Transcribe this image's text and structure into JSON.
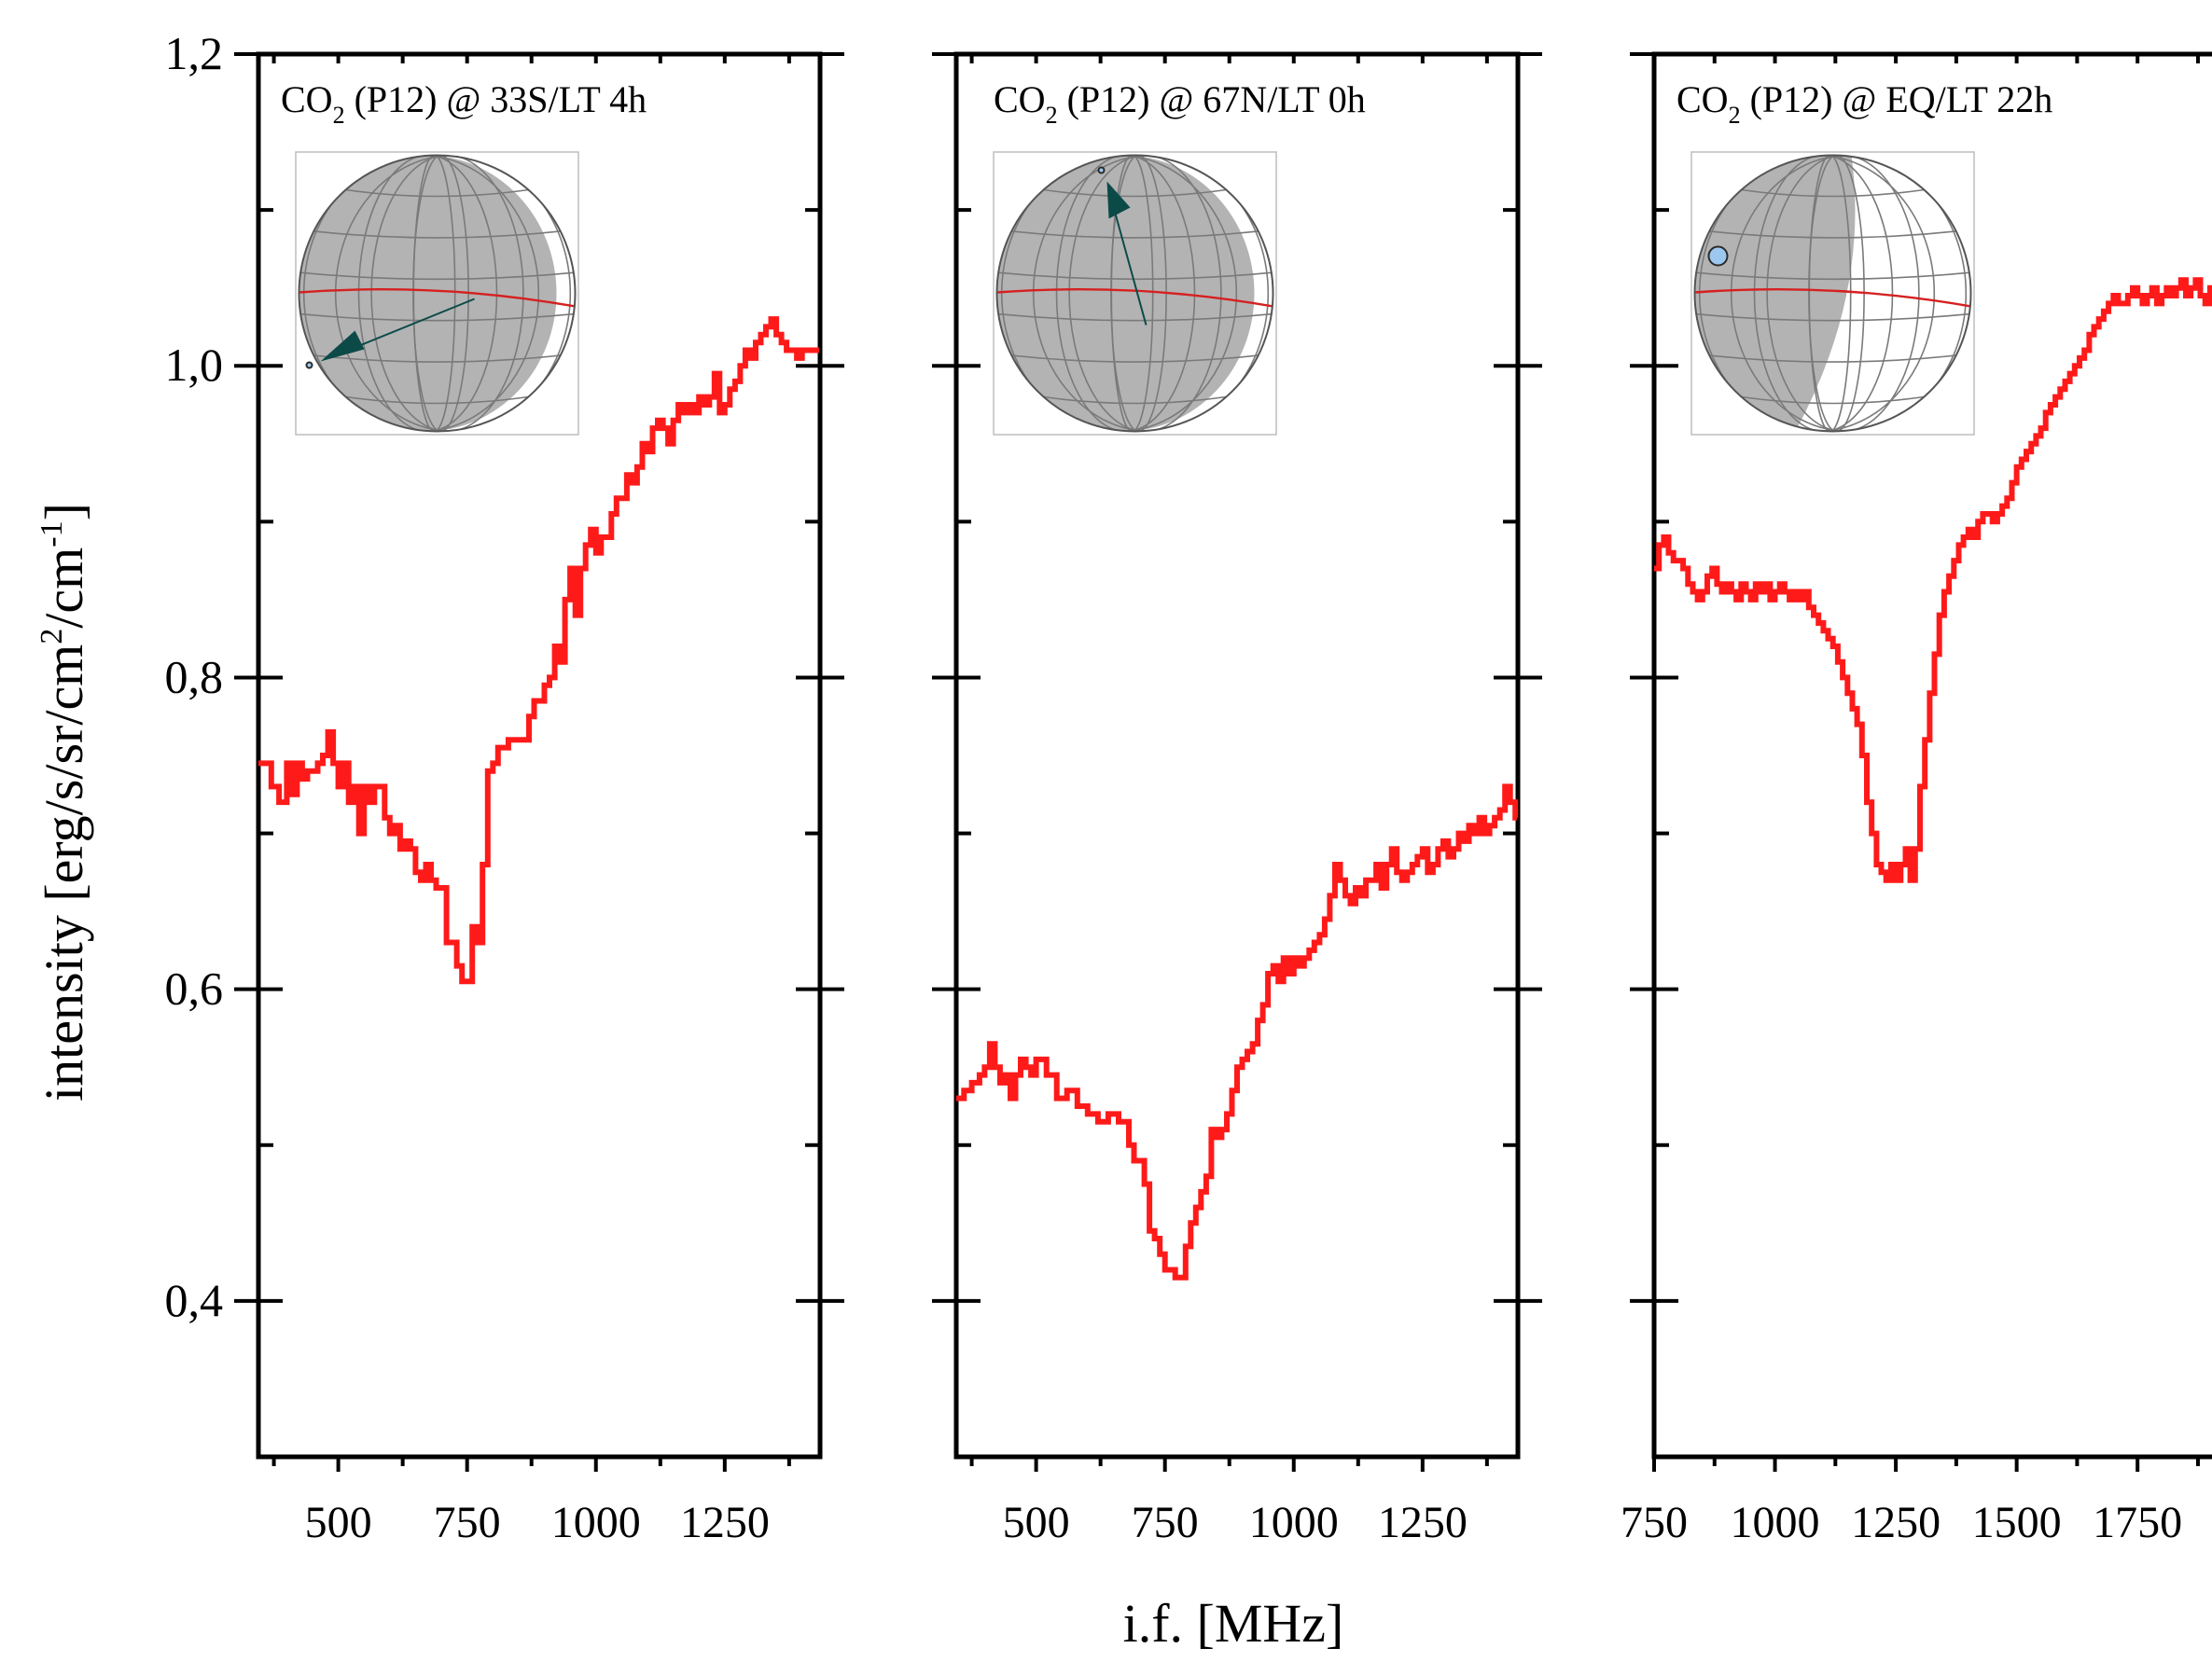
{
  "figure": {
    "y_axis_title": "intensity [erg/s/sr/cm",
    "y_axis_title_sup": "2",
    "y_axis_title_mid": "/cm",
    "y_axis_title_sup2": "-1",
    "y_axis_title_end": "]",
    "x_axis_title": "i.f. [MHz]"
  },
  "chart_data": [
    {
      "type": "line",
      "title_pre": "CO",
      "title_sub": "2",
      "title_post": " (P12) @ 33S/LT 4h",
      "xlim": [
        345,
        1435
      ],
      "ylim": [
        0.3,
        1.2
      ],
      "xticks": [
        500,
        750,
        1000,
        1250
      ],
      "yticks": [
        0.4,
        0.6,
        0.8,
        1.0,
        1.2
      ],
      "yticklabels": [
        "0,4",
        "0,6",
        "0,8",
        "1,0",
        "1,2"
      ],
      "color": "#ff1a1a",
      "x": [
        345,
        370,
        385,
        400,
        410,
        420,
        430,
        440,
        460,
        470,
        480,
        490,
        500,
        510,
        520,
        530,
        540,
        550,
        560,
        570,
        590,
        600,
        610,
        620,
        630,
        640,
        650,
        660,
        670,
        680,
        690,
        700,
        710,
        720,
        730,
        740,
        750,
        760,
        770,
        780,
        790,
        800,
        810,
        830,
        850,
        870,
        880,
        890,
        900,
        910,
        920,
        930,
        940,
        950,
        960,
        970,
        980,
        990,
        1000,
        1010,
        1020,
        1030,
        1040,
        1050,
        1060,
        1070,
        1080,
        1090,
        1100,
        1110,
        1120,
        1130,
        1140,
        1150,
        1160,
        1170,
        1180,
        1190,
        1200,
        1210,
        1220,
        1230,
        1240,
        1250,
        1260,
        1270,
        1280,
        1290,
        1300,
        1310,
        1320,
        1330,
        1340,
        1350,
        1360,
        1370,
        1380,
        1390,
        1400,
        1410,
        1420,
        1430
      ],
      "y": [
        0.745,
        0.73,
        0.72,
        0.745,
        0.725,
        0.745,
        0.735,
        0.74,
        0.745,
        0.75,
        0.765,
        0.745,
        0.73,
        0.745,
        0.72,
        0.73,
        0.7,
        0.73,
        0.72,
        0.73,
        0.71,
        0.7,
        0.705,
        0.69,
        0.695,
        0.69,
        0.675,
        0.67,
        0.68,
        0.67,
        0.665,
        0.665,
        0.63,
        0.63,
        0.615,
        0.605,
        0.605,
        0.64,
        0.63,
        0.68,
        0.74,
        0.745,
        0.755,
        0.76,
        0.76,
        0.775,
        0.785,
        0.785,
        0.795,
        0.8,
        0.82,
        0.81,
        0.85,
        0.87,
        0.84,
        0.87,
        0.885,
        0.895,
        0.88,
        0.89,
        0.89,
        0.905,
        0.915,
        0.915,
        0.93,
        0.925,
        0.935,
        0.95,
        0.945,
        0.96,
        0.965,
        0.96,
        0.95,
        0.965,
        0.975,
        0.97,
        0.975,
        0.97,
        0.98,
        0.975,
        0.98,
        0.995,
        0.97,
        0.975,
        0.985,
        0.99,
        1.0,
        1.01,
        1.005,
        1.015,
        1.02,
        1.025,
        1.03,
        1.02,
        1.015,
        1.01,
        1.01,
        1.005,
        1.01,
        1.01,
        1.01,
        1.01
      ],
      "inset": {
        "shading": "dark",
        "arrow": "left-down",
        "marker": "small"
      }
    },
    {
      "type": "line",
      "title_pre": "CO",
      "title_sub": "2",
      "title_post": " (P12) @ 67N/LT 0h",
      "xlim": [
        345,
        1435
      ],
      "ylim": [
        0.3,
        1.2
      ],
      "xticks": [
        500,
        750,
        1000,
        1250
      ],
      "yticks": [
        0.4,
        0.6,
        0.8,
        1.0,
        1.2
      ],
      "color": "#ff1a1a",
      "x": [
        345,
        360,
        375,
        390,
        400,
        410,
        420,
        430,
        440,
        450,
        460,
        470,
        480,
        490,
        500,
        520,
        540,
        560,
        580,
        600,
        620,
        640,
        660,
        680,
        690,
        700,
        710,
        720,
        730,
        740,
        750,
        760,
        770,
        780,
        790,
        800,
        810,
        820,
        830,
        840,
        850,
        860,
        870,
        880,
        890,
        900,
        910,
        920,
        930,
        940,
        950,
        960,
        970,
        980,
        990,
        1000,
        1010,
        1020,
        1030,
        1040,
        1050,
        1060,
        1070,
        1080,
        1090,
        1100,
        1110,
        1120,
        1130,
        1140,
        1150,
        1160,
        1170,
        1180,
        1190,
        1200,
        1210,
        1220,
        1230,
        1240,
        1250,
        1260,
        1270,
        1280,
        1290,
        1300,
        1310,
        1320,
        1330,
        1340,
        1350,
        1360,
        1370,
        1380,
        1390,
        1400,
        1410,
        1420,
        1430
      ],
      "y": [
        0.53,
        0.535,
        0.54,
        0.545,
        0.55,
        0.565,
        0.55,
        0.54,
        0.545,
        0.53,
        0.545,
        0.555,
        0.55,
        0.545,
        0.555,
        0.545,
        0.53,
        0.535,
        0.525,
        0.52,
        0.515,
        0.52,
        0.515,
        0.5,
        0.49,
        0.49,
        0.475,
        0.445,
        0.44,
        0.43,
        0.42,
        0.42,
        0.415,
        0.415,
        0.435,
        0.45,
        0.46,
        0.47,
        0.48,
        0.51,
        0.505,
        0.51,
        0.52,
        0.535,
        0.55,
        0.555,
        0.56,
        0.565,
        0.58,
        0.59,
        0.61,
        0.615,
        0.605,
        0.62,
        0.61,
        0.62,
        0.615,
        0.62,
        0.625,
        0.63,
        0.635,
        0.645,
        0.66,
        0.68,
        0.67,
        0.66,
        0.655,
        0.665,
        0.66,
        0.67,
        0.67,
        0.68,
        0.665,
        0.68,
        0.69,
        0.675,
        0.67,
        0.675,
        0.68,
        0.685,
        0.69,
        0.675,
        0.68,
        0.69,
        0.695,
        0.685,
        0.69,
        0.7,
        0.695,
        0.705,
        0.7,
        0.71,
        0.7,
        0.705,
        0.71,
        0.715,
        0.73,
        0.72,
        0.71
      ],
      "inset": {
        "shading": "dark",
        "arrow": "up-left",
        "marker": "small"
      }
    },
    {
      "type": "line",
      "title_pre": "CO",
      "title_sub": "2",
      "title_post": " (P12) @ EQ/LT 22h",
      "xlim": [
        750,
        1960
      ],
      "ylim": [
        0.3,
        1.2
      ],
      "xticks": [
        750,
        1000,
        1250,
        1500,
        1750
      ],
      "yticks": [
        0.4,
        0.6,
        0.8,
        1.0,
        1.2
      ],
      "color": "#ff1a1a",
      "x": [
        750,
        760,
        770,
        780,
        790,
        800,
        810,
        820,
        830,
        840,
        850,
        860,
        870,
        880,
        890,
        900,
        910,
        920,
        930,
        940,
        950,
        960,
        970,
        980,
        990,
        1000,
        1010,
        1020,
        1030,
        1040,
        1050,
        1060,
        1070,
        1080,
        1090,
        1100,
        1110,
        1120,
        1130,
        1140,
        1150,
        1160,
        1170,
        1180,
        1190,
        1200,
        1210,
        1220,
        1230,
        1240,
        1250,
        1260,
        1270,
        1280,
        1290,
        1300,
        1310,
        1320,
        1330,
        1340,
        1350,
        1360,
        1370,
        1380,
        1390,
        1400,
        1410,
        1420,
        1430,
        1440,
        1450,
        1460,
        1470,
        1480,
        1490,
        1500,
        1510,
        1520,
        1530,
        1540,
        1550,
        1560,
        1570,
        1580,
        1590,
        1600,
        1610,
        1620,
        1630,
        1640,
        1650,
        1660,
        1670,
        1680,
        1690,
        1700,
        1710,
        1720,
        1730,
        1740,
        1750,
        1760,
        1770,
        1780,
        1790,
        1800,
        1810,
        1820,
        1830,
        1840,
        1850,
        1860,
        1870,
        1880,
        1890,
        1900,
        1910,
        1920,
        1930,
        1940,
        1950
      ],
      "y": [
        0.87,
        0.885,
        0.89,
        0.88,
        0.875,
        0.875,
        0.87,
        0.86,
        0.855,
        0.85,
        0.855,
        0.865,
        0.87,
        0.86,
        0.855,
        0.86,
        0.855,
        0.85,
        0.86,
        0.855,
        0.85,
        0.86,
        0.855,
        0.86,
        0.85,
        0.855,
        0.86,
        0.855,
        0.85,
        0.855,
        0.85,
        0.855,
        0.845,
        0.84,
        0.835,
        0.83,
        0.825,
        0.82,
        0.81,
        0.8,
        0.79,
        0.78,
        0.77,
        0.75,
        0.72,
        0.7,
        0.68,
        0.675,
        0.67,
        0.68,
        0.67,
        0.68,
        0.69,
        0.67,
        0.69,
        0.73,
        0.76,
        0.79,
        0.815,
        0.84,
        0.855,
        0.865,
        0.875,
        0.885,
        0.89,
        0.895,
        0.89,
        0.9,
        0.905,
        0.905,
        0.9,
        0.905,
        0.91,
        0.915,
        0.925,
        0.935,
        0.94,
        0.945,
        0.95,
        0.955,
        0.96,
        0.97,
        0.975,
        0.98,
        0.985,
        0.99,
        0.995,
        1.0,
        1.005,
        1.01,
        1.02,
        1.025,
        1.03,
        1.035,
        1.04,
        1.045,
        1.04,
        1.04,
        1.045,
        1.05,
        1.045,
        1.04,
        1.045,
        1.05,
        1.04,
        1.045,
        1.05,
        1.045,
        1.05,
        1.055,
        1.045,
        1.05,
        1.055,
        1.045,
        1.04,
        1.05,
        1.055,
        1.06,
        1.05,
        1.045,
        1.05
      ],
      "inset": {
        "shading": "half",
        "arrow": "none",
        "marker": "large"
      }
    }
  ]
}
